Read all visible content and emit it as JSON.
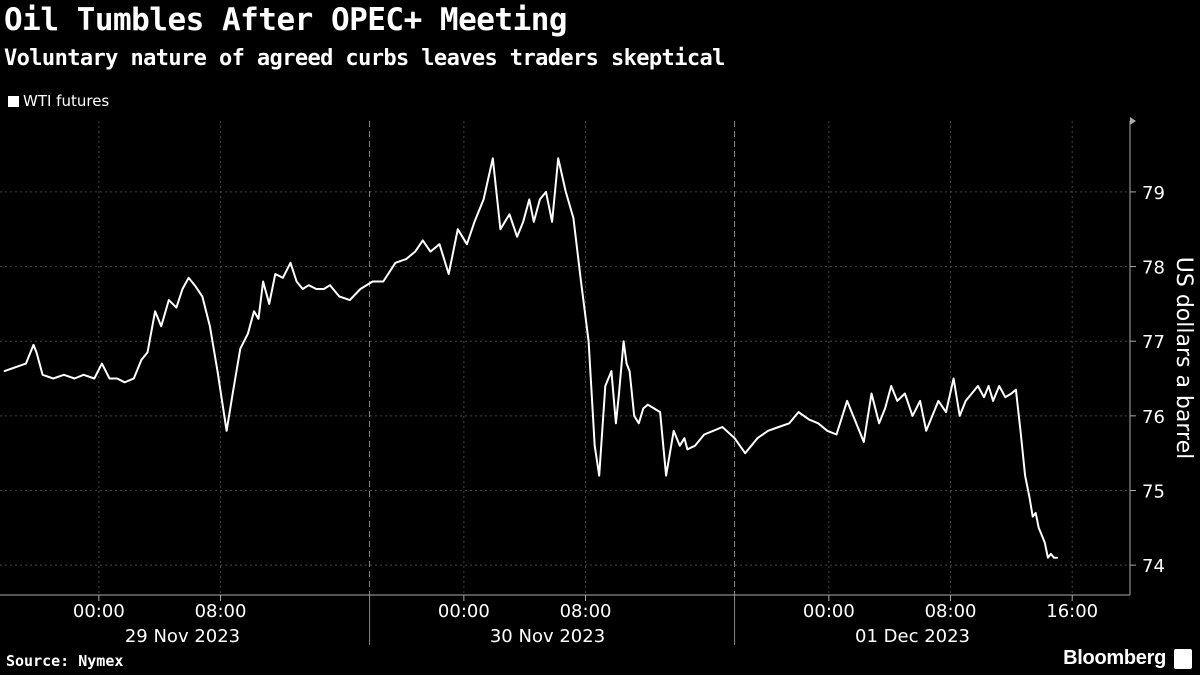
{
  "chart_data": {
    "type": "line",
    "title": "Oil Tumbles After OPEC+ Meeting",
    "subtitle": "Voluntary nature of agreed curbs leaves traders skeptical",
    "ylabel": "US dollars a barrel",
    "xlabel": "",
    "ylim": [
      73.6,
      79.95
    ],
    "y_ticks": [
      74,
      75,
      76,
      77,
      78,
      79
    ],
    "x_range_hours": [
      -6.5,
      67.8
    ],
    "x_ticks": [
      {
        "h": 0,
        "label": "00:00"
      },
      {
        "h": 8,
        "label": "08:00"
      },
      {
        "h": 24,
        "label": "00:00"
      },
      {
        "h": 32,
        "label": "08:00"
      },
      {
        "h": 48,
        "label": "00:00"
      },
      {
        "h": 56,
        "label": "08:00"
      },
      {
        "h": 64,
        "label": "16:00"
      }
    ],
    "day_labels": [
      {
        "h": 5.5,
        "label": "29 Nov 2023"
      },
      {
        "h": 29.5,
        "label": "30 Nov 2023"
      },
      {
        "h": 53.5,
        "label": "01 Dec 2023"
      }
    ],
    "day_separators_h": [
      17.8,
      41.8
    ],
    "grid": true,
    "legend": {
      "position": "top-left",
      "entries": [
        "WTI futures"
      ]
    },
    "series": [
      {
        "name": "WTI futures",
        "color": "#ffffff",
        "x": [
          -6.2,
          -5.5,
          -4.8,
          -4.3,
          -4.1,
          -3.7,
          -3.0,
          -2.3,
          -1.6,
          -1.0,
          -0.3,
          0.2,
          0.7,
          1.2,
          1.7,
          2.3,
          2.8,
          3.2,
          3.7,
          4.1,
          4.6,
          5.1,
          5.5,
          5.9,
          6.3,
          6.8,
          7.3,
          7.8,
          8.4,
          8.8,
          9.3,
          9.8,
          10.2,
          10.5,
          10.8,
          11.2,
          11.6,
          12.1,
          12.6,
          13.0,
          13.4,
          13.8,
          14.3,
          14.8,
          15.2,
          15.8,
          16.5,
          17.2,
          18.0,
          18.7,
          19.5,
          20.2,
          20.8,
          21.3,
          21.8,
          22.4,
          23.0,
          23.6,
          24.2,
          24.7,
          25.3,
          25.9,
          26.4,
          27.0,
          27.5,
          27.9,
          28.3,
          28.6,
          29.0,
          29.4,
          29.8,
          30.2,
          30.7,
          31.2,
          31.7,
          32.2,
          32.6,
          32.9,
          33.3,
          33.7,
          34.0,
          34.2,
          34.5,
          34.7,
          34.9,
          35.2,
          35.5,
          35.8,
          36.1,
          36.5,
          36.9,
          37.3,
          37.8,
          38.2,
          38.5,
          38.7,
          39.2,
          39.8,
          40.4,
          41.0,
          41.8,
          42.5,
          43.3,
          44.0,
          44.7,
          45.4,
          46.0,
          46.7,
          47.3,
          47.9,
          48.5,
          49.2,
          49.8,
          50.3,
          50.8,
          51.3,
          51.7,
          52.1,
          52.5,
          53.0,
          53.5,
          54.0,
          54.4,
          54.8,
          55.2,
          55.7,
          56.2,
          56.6,
          57.0,
          57.4,
          57.8,
          58.2,
          58.5,
          58.8,
          59.2,
          59.6,
          60.0,
          60.3,
          60.6,
          60.9,
          61.2,
          61.4,
          61.6,
          61.8,
          62.0,
          62.2,
          62.4,
          62.6,
          62.8,
          63.0
        ],
        "y": [
          76.6,
          76.65,
          76.7,
          76.95,
          76.85,
          76.55,
          76.5,
          76.55,
          76.5,
          76.55,
          76.5,
          76.7,
          76.5,
          76.5,
          76.45,
          76.5,
          76.75,
          76.85,
          77.4,
          77.2,
          77.55,
          77.45,
          77.7,
          77.85,
          77.75,
          77.6,
          77.2,
          76.6,
          75.8,
          76.3,
          76.9,
          77.1,
          77.4,
          77.3,
          77.8,
          77.5,
          77.9,
          77.85,
          78.05,
          77.8,
          77.7,
          77.75,
          77.7,
          77.7,
          77.75,
          77.6,
          77.55,
          77.7,
          77.8,
          77.8,
          78.05,
          78.1,
          78.2,
          78.35,
          78.2,
          78.3,
          77.9,
          78.5,
          78.3,
          78.6,
          78.9,
          79.45,
          78.5,
          78.7,
          78.4,
          78.6,
          78.9,
          78.6,
          78.9,
          79.0,
          78.6,
          79.45,
          79.0,
          78.65,
          77.8,
          77.0,
          75.6,
          75.2,
          76.4,
          76.6,
          75.9,
          76.3,
          77.0,
          76.7,
          76.6,
          76.0,
          75.9,
          76.1,
          76.15,
          76.1,
          76.05,
          75.2,
          75.8,
          75.6,
          75.7,
          75.55,
          75.6,
          75.75,
          75.8,
          75.85,
          75.7,
          75.5,
          75.7,
          75.8,
          75.85,
          75.9,
          76.05,
          75.95,
          75.9,
          75.8,
          75.75,
          76.2,
          75.9,
          75.65,
          76.3,
          75.9,
          76.1,
          76.4,
          76.2,
          76.3,
          76.0,
          76.2,
          75.8,
          76.0,
          76.2,
          76.05,
          76.5,
          76.0,
          76.2,
          76.3,
          76.4,
          76.25,
          76.4,
          76.2,
          76.4,
          76.25,
          76.3,
          76.35,
          75.8,
          75.2,
          74.9,
          74.65,
          74.7,
          74.5,
          74.4,
          74.3,
          74.1,
          74.15,
          74.1,
          74.1
        ]
      }
    ]
  },
  "footer": {
    "source": "Source: Nymex",
    "brand": "Bloomberg"
  }
}
